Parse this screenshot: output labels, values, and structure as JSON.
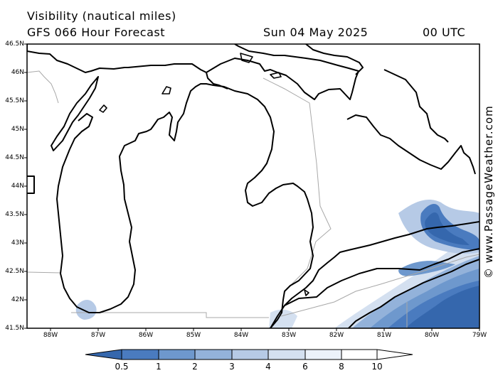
{
  "header": {
    "title": "Visibility (nautical miles)",
    "model": "GFS 066 Hour Forecast",
    "date": "Sun 04 May 2025",
    "time": "00 UTC"
  },
  "credit": "© www.PassageWeather.com",
  "lat_labels": [
    "46.5N",
    "46N",
    "45.5N",
    "45N",
    "44.5N",
    "44N",
    "43.5N",
    "43N",
    "42.5N",
    "42N",
    "41.5N"
  ],
  "lon_labels": [
    "88W",
    "87W",
    "86W",
    "85W",
    "84W",
    "83W",
    "82W",
    "81W",
    "80W",
    "79W"
  ],
  "colorbar": {
    "labels": [
      "0.5",
      "1",
      "2",
      "3",
      "4",
      "6",
      "8",
      "10"
    ],
    "colors": [
      "#3567ad",
      "#4a7bbf",
      "#6e98cd",
      "#93b2da",
      "#b6cae6",
      "#d4e0f0",
      "#ecf2fa",
      "#ffffff"
    ]
  }
}
